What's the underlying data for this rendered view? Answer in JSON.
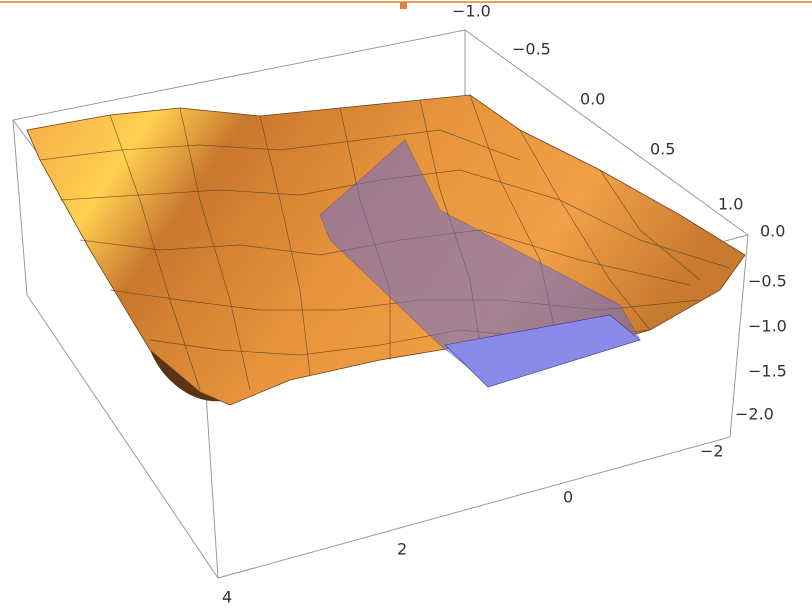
{
  "axes": {
    "y_ticks": [
      "−1.0",
      "−0.5",
      "0.0",
      "0.5",
      "1.0"
    ],
    "z_ticks": [
      "0.0",
      "−0.5",
      "−1.0",
      "−1.5",
      "−2.0"
    ],
    "x_ticks": [
      "−2",
      "0",
      "2",
      "4"
    ]
  }
}
